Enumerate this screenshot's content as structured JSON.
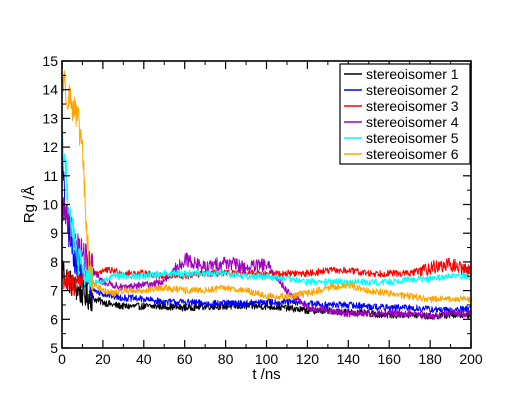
{
  "chart_data": {
    "type": "line",
    "title": "",
    "xlabel": "t /ns",
    "ylabel": "Rg /Å",
    "xlim": [
      0,
      200
    ],
    "ylim": [
      5,
      15
    ],
    "x_ticks": [
      "0",
      "20",
      "40",
      "60",
      "80",
      "100",
      "120",
      "140",
      "160",
      "180",
      "200"
    ],
    "y_ticks": [
      "5",
      "6",
      "7",
      "8",
      "9",
      "10",
      "11",
      "12",
      "13",
      "14",
      "15"
    ],
    "grid": false,
    "legend_position": "top-right",
    "series": [
      {
        "name": "stereoisomer 1",
        "color": "#000000",
        "x": [
          0,
          2,
          5,
          8,
          12,
          16,
          20,
          25,
          30,
          40,
          50,
          60,
          70,
          80,
          90,
          100,
          110,
          120,
          130,
          140,
          150,
          160,
          170,
          180,
          190,
          200
        ],
        "y": [
          7.8,
          7.5,
          7.2,
          7.0,
          6.8,
          6.7,
          6.6,
          6.5,
          6.45,
          6.45,
          6.45,
          6.4,
          6.45,
          6.45,
          6.45,
          6.45,
          6.4,
          6.3,
          6.3,
          6.25,
          6.2,
          6.15,
          6.15,
          6.1,
          6.15,
          6.15
        ]
      },
      {
        "name": "stereoisomer 2",
        "color": "#0000ff",
        "x": [
          0,
          2,
          5,
          8,
          12,
          16,
          20,
          25,
          30,
          40,
          50,
          60,
          70,
          80,
          90,
          100,
          110,
          120,
          130,
          140,
          150,
          160,
          170,
          180,
          190,
          200
        ],
        "y": [
          11.5,
          9.5,
          8.5,
          7.8,
          7.3,
          7.0,
          6.9,
          6.8,
          6.75,
          6.7,
          6.6,
          6.6,
          6.55,
          6.55,
          6.55,
          6.6,
          6.6,
          6.55,
          6.5,
          6.5,
          6.45,
          6.4,
          6.4,
          6.35,
          6.3,
          6.4
        ]
      },
      {
        "name": "stereoisomer 3",
        "color": "#ff0000",
        "x": [
          0,
          2,
          5,
          8,
          12,
          16,
          20,
          25,
          30,
          40,
          50,
          60,
          70,
          80,
          90,
          100,
          110,
          120,
          130,
          140,
          150,
          160,
          170,
          180,
          190,
          200
        ],
        "y": [
          7.6,
          7.3,
          7.2,
          7.4,
          7.5,
          7.6,
          7.7,
          7.7,
          7.6,
          7.6,
          7.5,
          7.5,
          7.6,
          7.6,
          7.6,
          7.6,
          7.6,
          7.6,
          7.7,
          7.7,
          7.6,
          7.6,
          7.6,
          7.8,
          7.9,
          7.7
        ]
      },
      {
        "name": "stereoisomer 4",
        "color": "#a000c0",
        "x": [
          0,
          2,
          5,
          8,
          12,
          16,
          20,
          25,
          30,
          40,
          50,
          60,
          70,
          80,
          90,
          100,
          110,
          120,
          130,
          140,
          150,
          160,
          170,
          180,
          190,
          200
        ],
        "y": [
          10.0,
          9.5,
          9.0,
          8.5,
          8.0,
          7.6,
          7.3,
          7.2,
          7.1,
          7.2,
          7.3,
          8.1,
          7.8,
          8.0,
          7.8,
          7.9,
          7.0,
          6.4,
          6.3,
          6.2,
          6.2,
          6.2,
          6.2,
          6.1,
          6.2,
          6.2
        ]
      },
      {
        "name": "stereoisomer 5",
        "color": "#00ffff",
        "x": [
          0,
          2,
          5,
          8,
          12,
          16,
          20,
          25,
          30,
          40,
          50,
          60,
          70,
          80,
          90,
          100,
          110,
          120,
          130,
          140,
          150,
          160,
          170,
          180,
          190,
          200
        ],
        "y": [
          12.5,
          11.0,
          9.0,
          8.0,
          7.5,
          7.3,
          7.3,
          7.5,
          7.5,
          7.5,
          7.6,
          7.6,
          7.6,
          7.6,
          7.5,
          7.5,
          7.4,
          7.3,
          7.3,
          7.3,
          7.3,
          7.3,
          7.4,
          7.4,
          7.5,
          7.5
        ]
      },
      {
        "name": "stereoisomer 6",
        "color": "#ffa500",
        "x": [
          0,
          2,
          5,
          8,
          10,
          12,
          14,
          16,
          20,
          25,
          30,
          40,
          50,
          60,
          70,
          80,
          90,
          100,
          110,
          120,
          130,
          140,
          150,
          160,
          170,
          180,
          190,
          200
        ],
        "y": [
          14.5,
          14.0,
          13.5,
          12.8,
          12.0,
          9.0,
          7.5,
          7.2,
          7.0,
          6.9,
          7.0,
          7.0,
          7.1,
          7.0,
          7.0,
          7.1,
          7.0,
          6.8,
          6.8,
          6.9,
          7.1,
          7.2,
          7.0,
          6.9,
          6.8,
          6.7,
          6.7,
          6.7
        ]
      }
    ]
  }
}
